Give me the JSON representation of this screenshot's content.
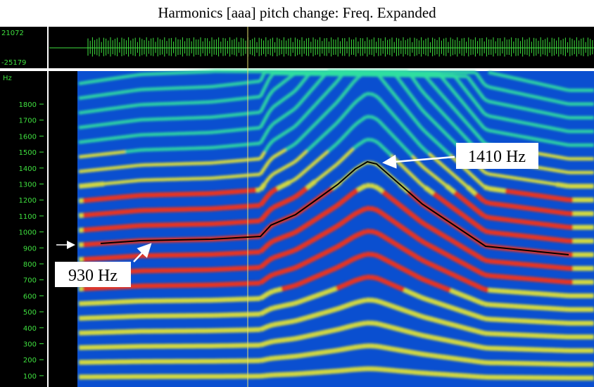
{
  "title": "Harmonics [aaa] pitch change: Freq. Expanded",
  "waveform": {
    "max_label": "21072",
    "min_label": "-25179"
  },
  "spectrogram": {
    "unit": "Hz",
    "ticks": [
      "1800",
      "1700",
      "1600",
      "1500",
      "1400",
      "1300",
      "1200",
      "1100",
      "1000",
      "900",
      "800",
      "700",
      "600",
      "500",
      "400",
      "300",
      "200",
      "100"
    ]
  },
  "annotations": {
    "peak": "1410 Hz",
    "start": "930 Hz"
  }
}
